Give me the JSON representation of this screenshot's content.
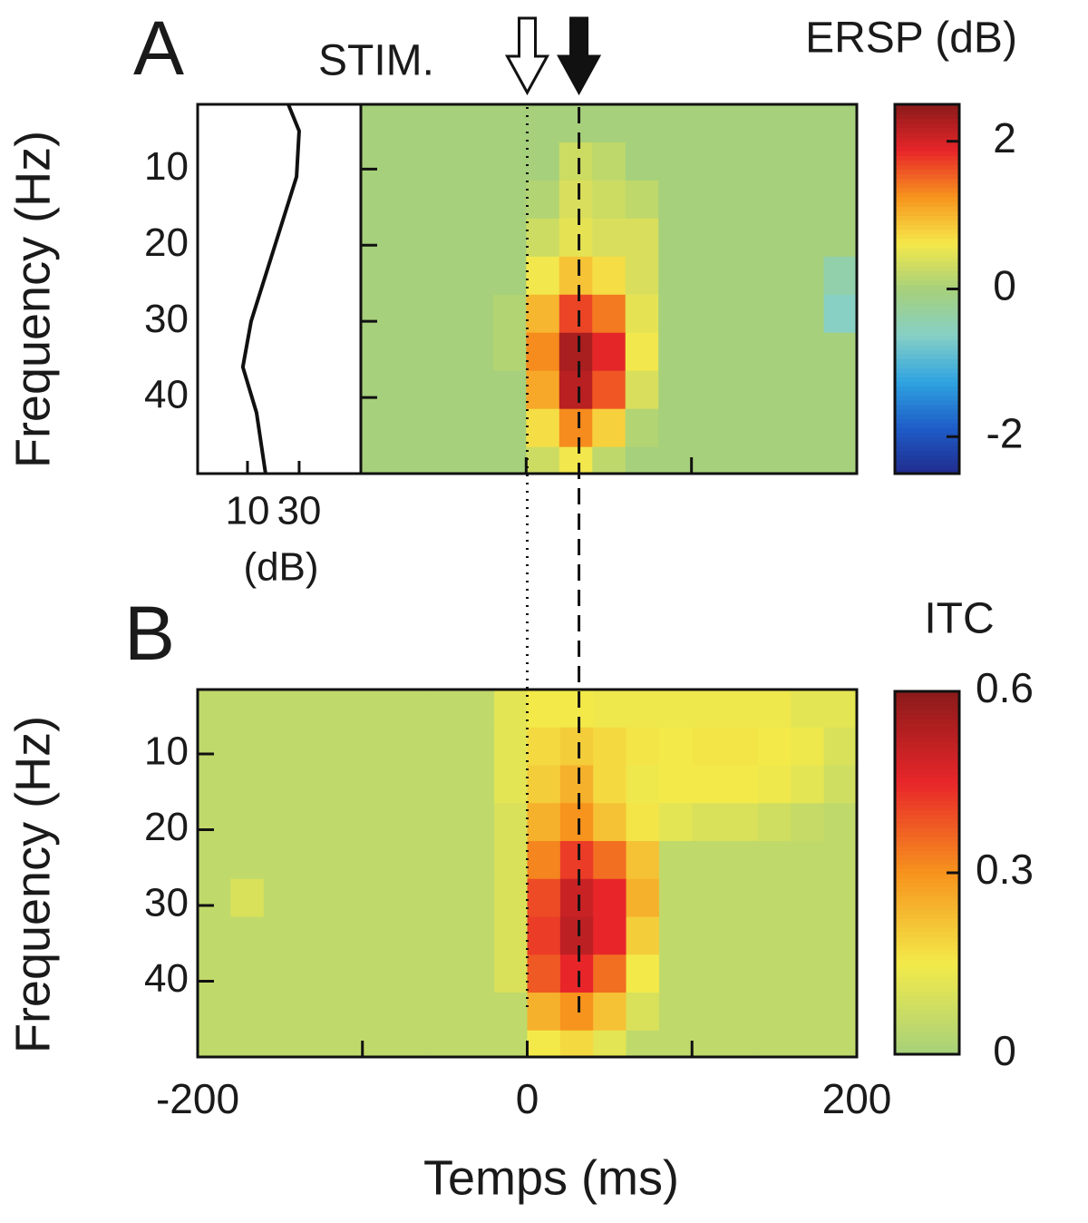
{
  "chart_data": [
    {
      "type": "line",
      "panel_label": "A",
      "ylabel": "Frequency (Hz)",
      "xlabel": "(dB)",
      "orientation": "vertical",
      "freqs": [
        1.5,
        5,
        11,
        30,
        36,
        42,
        50
      ],
      "values": [
        25.8,
        30,
        29,
        11.4,
        8.2,
        13.5,
        17
      ],
      "xlim": [
        -9.3,
        53.9
      ],
      "xticks": [
        10,
        30
      ],
      "ylim": [
        1.5,
        50
      ],
      "yticks": [
        10,
        20,
        30,
        40
      ],
      "y_inverted": true,
      "color": "#111111"
    },
    {
      "type": "heatmap",
      "annotation": "STIM.",
      "colorbar_label": "ERSP (dB)",
      "x": [
        -90,
        -70,
        -50,
        -30,
        -10,
        10,
        30,
        50,
        70,
        90,
        110,
        130,
        150,
        170,
        190
      ],
      "y": [
        4,
        9,
        14,
        19,
        24,
        29,
        34,
        39,
        44,
        49
      ],
      "values": [
        [
          0,
          0,
          0,
          0,
          0,
          0,
          0,
          0,
          0,
          0,
          0,
          0,
          0,
          0,
          0
        ],
        [
          0,
          0,
          0,
          0,
          0,
          0,
          0.3,
          0.2,
          0,
          0,
          0,
          0,
          0,
          0,
          0
        ],
        [
          0,
          0,
          0,
          0,
          0,
          0.1,
          0.4,
          0.3,
          0.2,
          0,
          0,
          0,
          0,
          0,
          0
        ],
        [
          0,
          0,
          0,
          0,
          0,
          0.3,
          0.5,
          0.4,
          0.4,
          0,
          0,
          0,
          0,
          0,
          0
        ],
        [
          0,
          0,
          0,
          0,
          0,
          0.6,
          0.9,
          0.7,
          0.4,
          0,
          0,
          0,
          0,
          0,
          -0.4
        ],
        [
          0,
          0,
          0,
          0,
          0.1,
          1.0,
          1.7,
          1.4,
          0.5,
          0,
          0,
          0,
          0,
          0,
          -0.6
        ],
        [
          0,
          0,
          0,
          0,
          0.1,
          1.3,
          2.3,
          1.9,
          0.6,
          0,
          0,
          0,
          0,
          0,
          0
        ],
        [
          0,
          0,
          0,
          0,
          0,
          1.1,
          2.2,
          1.6,
          0.4,
          0,
          0,
          0,
          0,
          0,
          0
        ],
        [
          0,
          0,
          0,
          0,
          0,
          0.7,
          1.3,
          0.8,
          0.1,
          0,
          0,
          0,
          0,
          0,
          0
        ],
        [
          0,
          0,
          0,
          0,
          0,
          0.3,
          0.6,
          0.2,
          0,
          0,
          0,
          0,
          0,
          0,
          0
        ]
      ],
      "xlim": [
        -100,
        200
      ],
      "xticks_minor": [
        0,
        100
      ],
      "ylim": [
        1.5,
        50
      ],
      "yticks_minor": [
        10,
        20,
        30,
        40
      ],
      "y_inverted": true,
      "clim": [
        -2.5,
        2.5
      ],
      "cticks": [
        -2,
        0,
        2
      ],
      "colormap": [
        "#202a8c",
        "#1e5cc8",
        "#2fa3e0",
        "#86d0c6",
        "#a6d07b",
        "#f5e84a",
        "#f7941d",
        "#e8262a",
        "#8b1a1a"
      ],
      "markers": [
        {
          "x": 0,
          "style": "dotted",
          "arrow": "hollow"
        },
        {
          "x": 31.4,
          "style": "dashed",
          "arrow": "filled"
        }
      ]
    },
    {
      "type": "heatmap",
      "panel_label": "B",
      "ylabel": "Frequency (Hz)",
      "xlabel": "Temps (ms)",
      "colorbar_label": "ITC",
      "x": [
        -190,
        -170,
        -150,
        -130,
        -110,
        -90,
        -70,
        -50,
        -30,
        -10,
        10,
        30,
        50,
        70,
        90,
        110,
        130,
        150,
        170,
        190
      ],
      "y": [
        4,
        9,
        14,
        19,
        24,
        29,
        34,
        39,
        44,
        49
      ],
      "values": [
        [
          0.05,
          0.05,
          0.05,
          0.05,
          0.05,
          0.05,
          0.05,
          0.05,
          0.05,
          0.12,
          0.15,
          0.15,
          0.14,
          0.14,
          0.14,
          0.14,
          0.14,
          0.14,
          0.12,
          0.12
        ],
        [
          0.05,
          0.05,
          0.05,
          0.05,
          0.05,
          0.05,
          0.05,
          0.05,
          0.05,
          0.12,
          0.18,
          0.2,
          0.18,
          0.16,
          0.15,
          0.16,
          0.16,
          0.15,
          0.14,
          0.1
        ],
        [
          0.05,
          0.05,
          0.05,
          0.05,
          0.05,
          0.05,
          0.05,
          0.05,
          0.05,
          0.12,
          0.2,
          0.25,
          0.18,
          0.14,
          0.15,
          0.15,
          0.15,
          0.14,
          0.12,
          0.08
        ],
        [
          0.05,
          0.05,
          0.05,
          0.05,
          0.05,
          0.05,
          0.05,
          0.05,
          0.05,
          0.1,
          0.25,
          0.3,
          0.22,
          0.16,
          0.12,
          0.1,
          0.1,
          0.08,
          0.06,
          0.05
        ],
        [
          0.05,
          0.05,
          0.05,
          0.05,
          0.05,
          0.05,
          0.05,
          0.05,
          0.05,
          0.1,
          0.32,
          0.42,
          0.35,
          0.22,
          0.05,
          0.05,
          0.05,
          0.05,
          0.05,
          0.05
        ],
        [
          0.05,
          0.1,
          0.05,
          0.05,
          0.05,
          0.05,
          0.05,
          0.05,
          0.05,
          0.1,
          0.4,
          0.5,
          0.45,
          0.25,
          0.05,
          0.05,
          0.05,
          0.05,
          0.05,
          0.05
        ],
        [
          0.05,
          0.05,
          0.05,
          0.05,
          0.05,
          0.05,
          0.05,
          0.05,
          0.05,
          0.1,
          0.42,
          0.52,
          0.45,
          0.2,
          0.05,
          0.05,
          0.05,
          0.05,
          0.05,
          0.05
        ],
        [
          0.05,
          0.05,
          0.05,
          0.05,
          0.05,
          0.05,
          0.05,
          0.05,
          0.05,
          0.1,
          0.38,
          0.45,
          0.35,
          0.15,
          0.05,
          0.05,
          0.05,
          0.05,
          0.05,
          0.05
        ],
        [
          0.05,
          0.05,
          0.05,
          0.05,
          0.05,
          0.05,
          0.05,
          0.05,
          0.05,
          0.05,
          0.25,
          0.3,
          0.22,
          0.1,
          0.05,
          0.05,
          0.05,
          0.05,
          0.05,
          0.05
        ],
        [
          0.05,
          0.05,
          0.05,
          0.05,
          0.05,
          0.05,
          0.05,
          0.05,
          0.05,
          0.05,
          0.15,
          0.18,
          0.12,
          0.05,
          0.05,
          0.05,
          0.05,
          0.05,
          0.05,
          0.05
        ]
      ],
      "xlim": [
        -200,
        200
      ],
      "xticks": [
        -200,
        0,
        200
      ],
      "xticks_minor": [
        -100,
        100
      ],
      "ylim": [
        1.5,
        50
      ],
      "yticks": [
        10,
        20,
        30,
        40
      ],
      "y_inverted": true,
      "clim": [
        0,
        0.6
      ],
      "cticks": [
        0.6,
        0.3,
        0
      ],
      "colormap": [
        "#a6d07b",
        "#f3ea4a",
        "#f7941d",
        "#e8262a",
        "#8b1a1a"
      ]
    }
  ]
}
